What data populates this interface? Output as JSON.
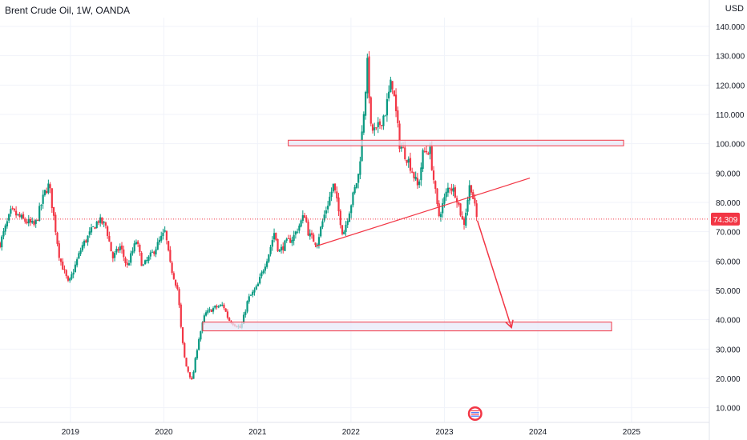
{
  "header": {
    "title": "Brent Crude Oil, 1W, OANDA",
    "currency": "USD"
  },
  "colors": {
    "up": "#089981",
    "down": "#f23645",
    "grid": "#f0f3fa",
    "zone_fill": "#e8eaf8",
    "zone_stroke": "#f23645",
    "line": "#f23645",
    "price_tag": "#f23645"
  },
  "icons": {
    "flag": "us-flag-icon"
  },
  "chart_data": {
    "type": "candlestick",
    "title": "Brent Crude Oil, 1W, OANDA",
    "ylabel": "USD",
    "ylim": [
      5,
      143
    ],
    "xlim": [
      "2018-04-01",
      "2025-11-01"
    ],
    "grid": true,
    "y_ticks": [
      "140.000",
      "130.000",
      "120.000",
      "110.000",
      "100.000",
      "90.000",
      "80.000",
      "70.000",
      "60.000",
      "50.000",
      "40.000",
      "30.000",
      "20.000",
      "10.000"
    ],
    "y_tick_values": [
      140,
      130,
      120,
      110,
      100,
      90,
      80,
      70,
      60,
      50,
      40,
      30,
      20,
      10
    ],
    "x_ticks": [
      {
        "label": "2019",
        "date": "2019-01-01"
      },
      {
        "label": "2020",
        "date": "2020-01-01"
      },
      {
        "label": "2021",
        "date": "2021-01-01"
      },
      {
        "label": "2022",
        "date": "2022-01-01"
      },
      {
        "label": "2023",
        "date": "2023-01-01"
      },
      {
        "label": "2024",
        "date": "2024-01-01"
      },
      {
        "label": "2025",
        "date": "2025-01-01"
      }
    ],
    "last_price": "74.309",
    "last_price_value": 74.309,
    "price_path": [
      [
        "2018-04-01",
        66
      ],
      [
        "2018-05-15",
        77
      ],
      [
        "2018-07-01",
        74
      ],
      [
        "2018-08-15",
        72
      ],
      [
        "2018-09-25",
        84
      ],
      [
        "2018-10-10",
        86
      ],
      [
        "2018-11-20",
        61
      ],
      [
        "2018-12-25",
        52
      ],
      [
        "2019-02-15",
        65
      ],
      [
        "2019-04-20",
        74
      ],
      [
        "2019-05-20",
        72
      ],
      [
        "2019-06-15",
        61
      ],
      [
        "2019-07-15",
        65
      ],
      [
        "2019-08-10",
        58
      ],
      [
        "2019-09-16",
        67
      ],
      [
        "2019-10-10",
        58
      ],
      [
        "2019-11-20",
        63
      ],
      [
        "2020-01-06",
        70
      ],
      [
        "2020-01-25",
        59
      ],
      [
        "2020-02-25",
        50
      ],
      [
        "2020-03-10",
        35
      ],
      [
        "2020-03-25",
        25
      ],
      [
        "2020-04-20",
        19
      ],
      [
        "2020-05-15",
        33
      ],
      [
        "2020-06-10",
        42
      ],
      [
        "2020-07-15",
        44
      ],
      [
        "2020-08-20",
        45
      ],
      [
        "2020-09-10",
        40
      ],
      [
        "2020-10-28",
        37
      ],
      [
        "2020-11-25",
        47
      ],
      [
        "2020-12-30",
        51
      ],
      [
        "2021-02-15",
        63
      ],
      [
        "2021-03-08",
        70
      ],
      [
        "2021-03-25",
        63
      ],
      [
        "2021-04-20",
        66
      ],
      [
        "2021-05-20",
        68
      ],
      [
        "2021-07-05",
        76
      ],
      [
        "2021-07-20",
        69
      ],
      [
        "2021-08-20",
        66
      ],
      [
        "2021-09-20",
        76
      ],
      [
        "2021-10-25",
        86
      ],
      [
        "2021-12-01",
        69
      ],
      [
        "2021-12-25",
        77
      ],
      [
        "2022-02-01",
        90
      ],
      [
        "2022-03-07",
        128
      ],
      [
        "2022-03-20",
        105
      ],
      [
        "2022-04-10",
        104
      ],
      [
        "2022-05-15",
        111
      ],
      [
        "2022-06-10",
        122
      ],
      [
        "2022-07-10",
        100
      ],
      [
        "2022-08-15",
        94
      ],
      [
        "2022-09-20",
        85
      ],
      [
        "2022-10-10",
        97
      ],
      [
        "2022-11-05",
        98
      ],
      [
        "2022-12-09",
        75
      ],
      [
        "2023-01-20",
        86
      ],
      [
        "2023-02-15",
        83
      ],
      [
        "2023-03-17",
        72
      ],
      [
        "2023-04-12",
        87
      ],
      [
        "2023-05-08",
        74.3
      ]
    ],
    "annotations": {
      "resistance_zone": {
        "from": "2021-05-01",
        "to": "2024-12-01",
        "low": 99.3,
        "high": 101.2
      },
      "support_zone": {
        "from": "2020-06-01",
        "to": "2024-10-15",
        "low": 36.2,
        "high": 39.2
      },
      "trendline": {
        "from": [
          "2021-08-15",
          65.0
        ],
        "to": [
          "2023-12-01",
          88.3
        ]
      },
      "forecast_arrow": {
        "from": [
          "2023-05-10",
          73.8
        ],
        "to": [
          "2023-09-20",
          37.3
        ]
      },
      "last_price_line": 74.309
    },
    "markers": [
      "us-flag-icon"
    ]
  }
}
